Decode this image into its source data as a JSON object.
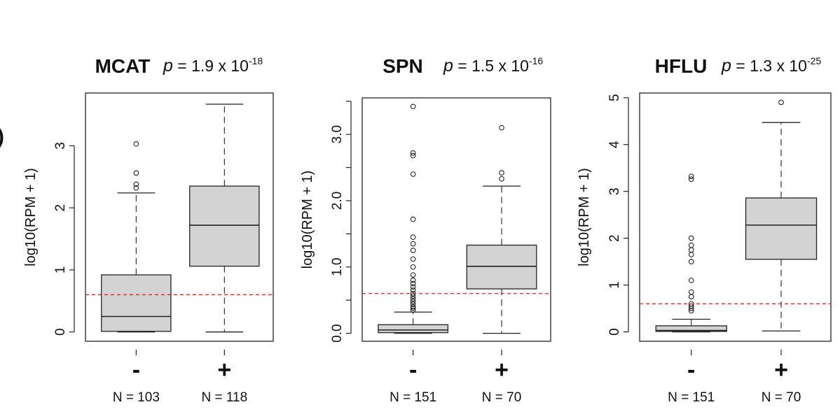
{
  "figure": {
    "panel_label": ")",
    "reference_line_color": "#d62728",
    "box_fill": "#d3d3d3"
  },
  "chart_data": [
    {
      "type": "boxplot",
      "title": "MCAT",
      "pvalue": {
        "prefix": "p",
        "eq": " = ",
        "mantissa": "1.9 x 10",
        "exponent": "-18"
      },
      "ylabel": "log10(RPM + 1)",
      "ylim": [
        -0.15,
        3.85
      ],
      "yticks": [
        0,
        1,
        2,
        3
      ],
      "ytick_labels": [
        "0",
        "1",
        "2",
        "3"
      ],
      "reference_line": 0.6,
      "groups": [
        {
          "label": "-",
          "n_label": "N = 103",
          "min": 0.0,
          "q1": 0.01,
          "median": 0.25,
          "q3": 0.92,
          "max": 2.24,
          "outliers": [
            2.32,
            2.38,
            2.56,
            3.03
          ]
        },
        {
          "label": "+",
          "n_label": "N = 118",
          "min": 0.0,
          "q1": 1.06,
          "median": 1.72,
          "q3": 2.35,
          "max": 3.67,
          "outliers": []
        }
      ]
    },
    {
      "type": "boxplot",
      "title": "SPN",
      "pvalue": {
        "prefix": "p",
        "eq": " = ",
        "mantissa": "1.5 x 10",
        "exponent": "-16"
      },
      "ylabel": "log10(RPM + 1)",
      "ylim": [
        -0.12,
        3.55
      ],
      "yticks": [
        0,
        0.5,
        1.0,
        1.5,
        2.0,
        2.5,
        3.0,
        3.5
      ],
      "ytick_labels": [
        "0.0",
        "",
        "1.0",
        "",
        "2.0",
        "",
        "3.0",
        ""
      ],
      "reference_line": 0.6,
      "groups": [
        {
          "label": "-",
          "n_label": "N = 151",
          "min": 0.0,
          "q1": 0.01,
          "median": 0.05,
          "q3": 0.13,
          "max": 0.32,
          "outliers": [
            0.35,
            0.38,
            0.4,
            0.44,
            0.48,
            0.52,
            0.56,
            0.6,
            0.65,
            0.7,
            0.75,
            0.8,
            0.88,
            1.0,
            1.12,
            1.25,
            1.35,
            1.45,
            1.72,
            2.4,
            2.68,
            2.72,
            3.42
          ]
        },
        {
          "label": "+",
          "n_label": "N = 70",
          "min": 0.0,
          "q1": 0.67,
          "median": 1.01,
          "q3": 1.33,
          "max": 2.22,
          "outliers": [
            2.33,
            2.42,
            3.1
          ]
        }
      ]
    },
    {
      "type": "boxplot",
      "title": "HFLU",
      "pvalue": {
        "prefix": "p",
        "eq": " = ",
        "mantissa": "1.3 x 10",
        "exponent": "-25"
      },
      "ylabel": "log10(RPM + 1)",
      "ylim": [
        -0.2,
        5.1
      ],
      "yticks": [
        0,
        1,
        2,
        3,
        4,
        5
      ],
      "ytick_labels": [
        "0",
        "1",
        "2",
        "3",
        "4",
        "5"
      ],
      "reference_line": 0.6,
      "groups": [
        {
          "label": "-",
          "n_label": "N = 151",
          "min": 0.0,
          "q1": 0.01,
          "median": 0.03,
          "q3": 0.13,
          "max": 0.27,
          "outliers": [
            0.45,
            0.5,
            0.55,
            0.6,
            0.75,
            0.85,
            1.1,
            1.5,
            1.65,
            1.75,
            1.85,
            2.0,
            3.26,
            3.32
          ]
        },
        {
          "label": "+",
          "n_label": "N = 70",
          "min": 0.02,
          "q1": 1.55,
          "median": 2.28,
          "q3": 2.86,
          "max": 4.47,
          "outliers": [
            4.9
          ]
        }
      ]
    }
  ]
}
